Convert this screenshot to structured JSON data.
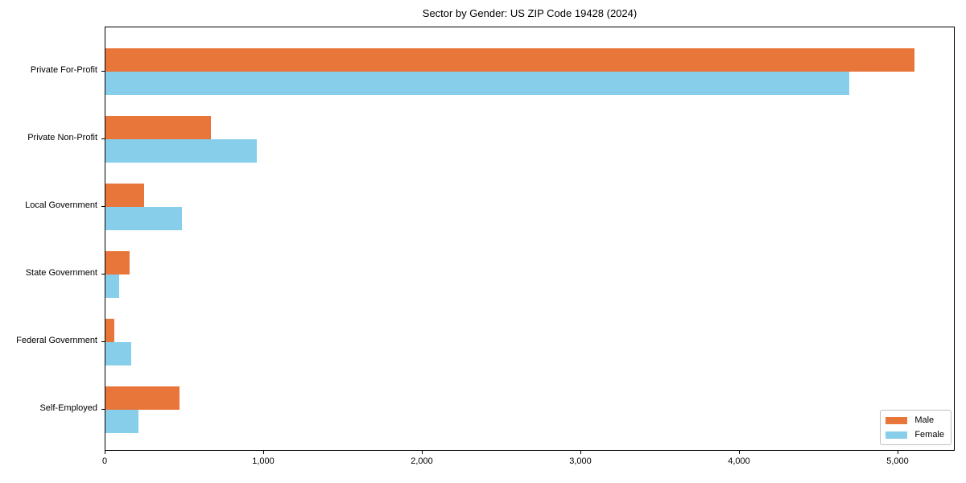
{
  "chart_data": {
    "type": "bar",
    "orientation": "horizontal",
    "title": "Sector by Gender: US ZIP Code 19428 (2024)",
    "categories": [
      "Private For-Profit",
      "Private Non-Profit",
      "Local Government",
      "State Government",
      "Federal Government",
      "Self-Employed"
    ],
    "series": [
      {
        "name": "Male",
        "color": "#E8763B",
        "values": [
          5100,
          665,
          245,
          150,
          55,
          465
        ]
      },
      {
        "name": "Female",
        "color": "#87CEEB",
        "values": [
          4690,
          955,
          480,
          85,
          160,
          210
        ]
      }
    ],
    "xlabel": "",
    "ylabel": "",
    "xlim": [
      0,
      5360
    ],
    "xticks": [
      0,
      1000,
      2000,
      3000,
      4000,
      5000
    ],
    "xtick_labels": [
      "0",
      "1,000",
      "2,000",
      "3,000",
      "4,000",
      "5,000"
    ],
    "grid": false,
    "legend": {
      "position": "lower-right",
      "entries": [
        "Male",
        "Female"
      ]
    },
    "colors": {
      "axis": "#000000",
      "background": "#ffffff",
      "legend_border": "#bfbfbf"
    }
  }
}
